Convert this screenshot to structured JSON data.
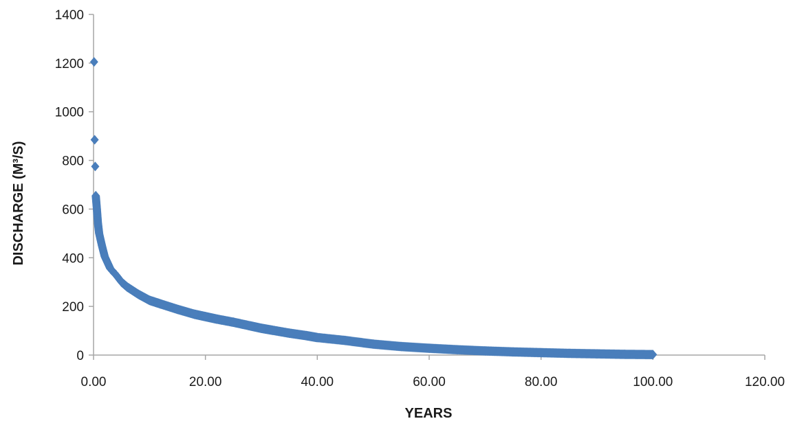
{
  "chart_data": {
    "type": "scatter",
    "title": "",
    "xlabel": "YEARS",
    "ylabel": "DISCHARGE (M³/S)",
    "xlim": [
      0,
      120
    ],
    "ylim": [
      0,
      1400
    ],
    "x_ticks": [
      "0.00",
      "20.00",
      "40.00",
      "60.00",
      "80.00",
      "100.00",
      "120.00"
    ],
    "y_ticks": [
      "0",
      "200",
      "400",
      "600",
      "800",
      "1000",
      "1200",
      "1400"
    ],
    "grid": false,
    "legend": "none",
    "marker": "diamond",
    "colors": {
      "series": "#4a7ebb",
      "axis": "#a6a6a6",
      "text": "#1a1a1a"
    },
    "series": [
      {
        "x": [
          0.1,
          0.2,
          0.3,
          0.4,
          0.6,
          0.8,
          1.0,
          1.5,
          2.0,
          2.5,
          3.0,
          4.0,
          5.0,
          6.0,
          8.0,
          10.0,
          12.0,
          15.0,
          18.0,
          20.0,
          22.0,
          25.0,
          28.0,
          30.0,
          32.0,
          35.0,
          38.0,
          40.0,
          45.0,
          50.0,
          55.0,
          60.0,
          65.0,
          70.0,
          75.0,
          80.0,
          85.0,
          90.0,
          95.0,
          100.0
        ],
        "y": [
          1205,
          885,
          775,
          655,
          600,
          540,
          500,
          450,
          405,
          380,
          355,
          330,
          300,
          280,
          250,
          225,
          210,
          188,
          168,
          158,
          148,
          135,
          120,
          110,
          102,
          90,
          80,
          72,
          60,
          45,
          35,
          28,
          22,
          17,
          13,
          10,
          7,
          5,
          3,
          2
        ]
      }
    ]
  }
}
